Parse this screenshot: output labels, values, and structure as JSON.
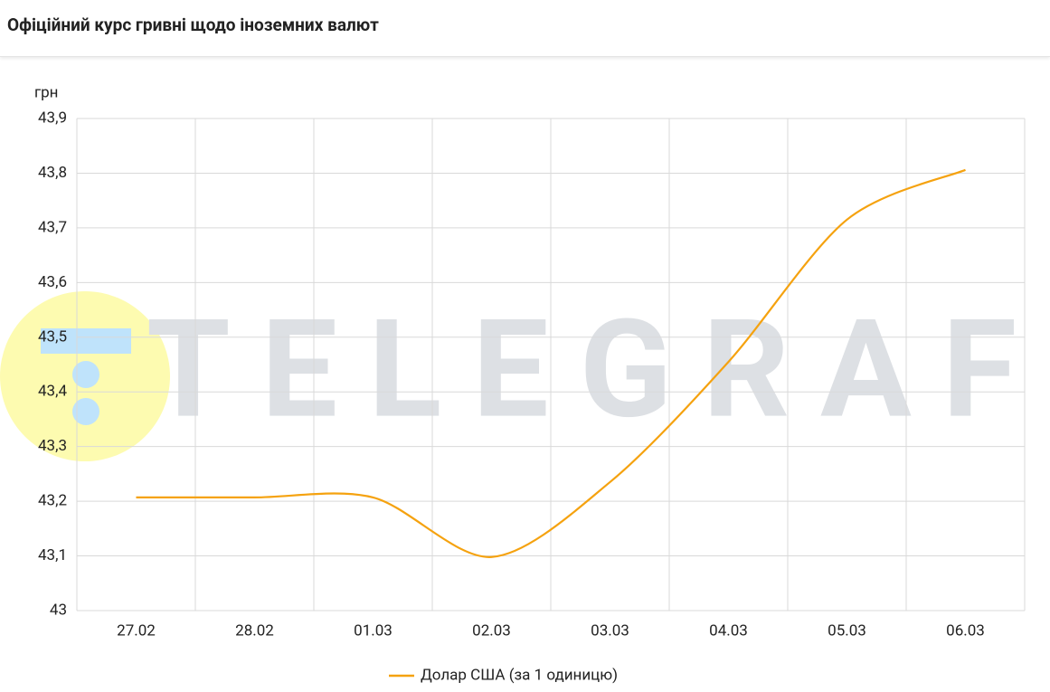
{
  "chart_data": {
    "type": "line",
    "title": "Офіційний курс гривні щодо іноземних валют",
    "watermark": "TELEGRAF",
    "y_label": "грн",
    "categories": [
      "27.02",
      "28.02",
      "01.03",
      "02.03",
      "03.03",
      "04.03",
      "05.03",
      "06.03"
    ],
    "series": [
      {
        "name": "Долар США (за 1 одиницю)",
        "color": "#f5a20f",
        "values": [
          43.207,
          43.207,
          43.207,
          43.098,
          43.235,
          43.455,
          43.715,
          43.806
        ]
      }
    ],
    "ylim": [
      43,
      43.9
    ],
    "yticks": [
      43,
      {
        "value": 43.1,
        "label": "43,1"
      },
      {
        "value": 43.2,
        "label": "43,2"
      },
      {
        "value": 43.3,
        "label": "43,3"
      },
      {
        "value": 43.4,
        "label": "43,4"
      },
      {
        "value": 43.5,
        "label": "43,5"
      },
      {
        "value": 43.6,
        "label": "43,6"
      },
      {
        "value": 43.7,
        "label": "43,7"
      },
      {
        "value": 43.8,
        "label": "43,8"
      },
      {
        "value": 43.9,
        "label": "43,9"
      }
    ],
    "grid": true,
    "legend": "bottom"
  }
}
